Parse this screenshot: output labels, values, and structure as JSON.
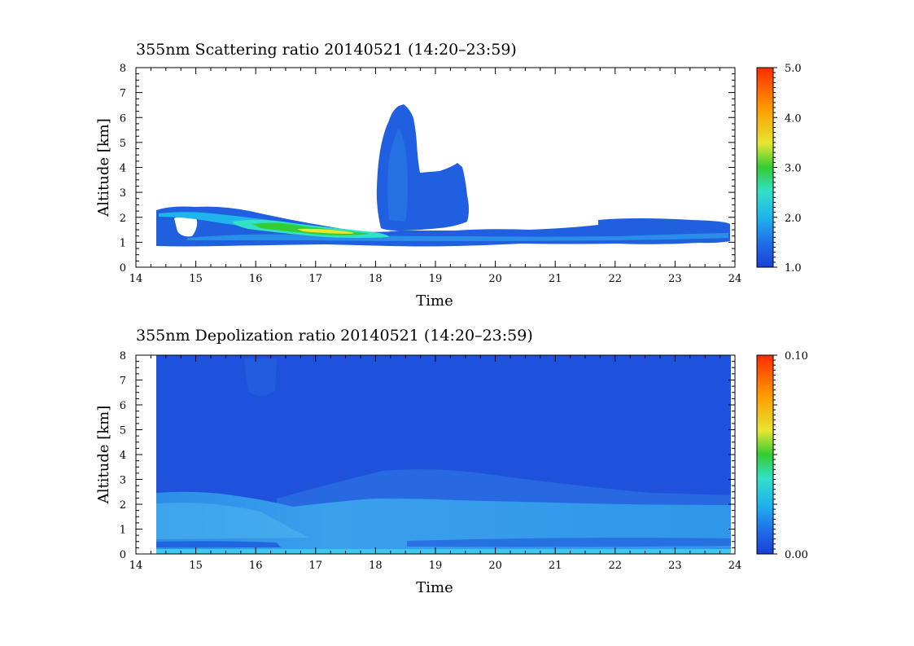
{
  "chart_data": [
    {
      "type": "heatmap",
      "title": "355nm Scattering ratio  20140521 (14:20–23:59)",
      "xlabel": "Time",
      "ylabel": "Altitude [km]",
      "xlim": [
        14,
        24
      ],
      "ylim": [
        0,
        8
      ],
      "x_ticks": [
        "14",
        "15",
        "16",
        "17",
        "18",
        "19",
        "20",
        "21",
        "22",
        "23",
        "24"
      ],
      "y_ticks": [
        "0",
        "1",
        "2",
        "3",
        "4",
        "5",
        "6",
        "7",
        "8"
      ],
      "colorbar": {
        "range": [
          1.0,
          5.0
        ],
        "ticks": [
          "1.0",
          "2.0",
          "3.0",
          "4.0",
          "5.0"
        ]
      },
      "features": [
        {
          "name": "boundary-layer",
          "time_range": [
            14.33,
            23.98
          ],
          "altitude_range": [
            0.8,
            2.3
          ],
          "value": 1.3
        },
        {
          "name": "elevated-aerosol",
          "time_range": [
            15.8,
            18.0
          ],
          "altitude_range": [
            1.2,
            1.8
          ],
          "value": 3.2
        },
        {
          "name": "convective-cloud",
          "time_range": [
            18.05,
            18.75
          ],
          "altitude_range": [
            1.5,
            6.5
          ],
          "value": 1.2
        },
        {
          "name": "cloud-shoulder",
          "time_range": [
            18.75,
            19.55
          ],
          "altitude_range": [
            1.6,
            4.2
          ],
          "value": 1.2
        }
      ]
    },
    {
      "type": "heatmap",
      "title": "355nm Depolization ratio  20140521 (14:20–23:59)",
      "xlabel": "Time",
      "ylabel": "Altitude [km]",
      "xlim": [
        14,
        24
      ],
      "ylim": [
        0,
        8
      ],
      "x_ticks": [
        "14",
        "15",
        "16",
        "17",
        "18",
        "19",
        "20",
        "21",
        "22",
        "23",
        "24"
      ],
      "y_ticks": [
        "0",
        "1",
        "2",
        "3",
        "4",
        "5",
        "6",
        "7",
        "8"
      ],
      "colorbar": {
        "range": [
          0.0,
          0.1
        ],
        "ticks": [
          "0.00",
          "0.10"
        ]
      },
      "features": [
        {
          "name": "background",
          "time_range": [
            14.33,
            23.98
          ],
          "altitude_range": [
            0,
            8
          ],
          "value": 0.012
        },
        {
          "name": "lower-layer",
          "time_range": [
            14.33,
            23.98
          ],
          "altitude_range": [
            0.3,
            2.4
          ],
          "value": 0.03
        },
        {
          "name": "surface-band",
          "time_range": [
            14.33,
            23.98
          ],
          "altitude_range": [
            0,
            0.3
          ],
          "value": 0.025
        }
      ]
    }
  ],
  "colors": {
    "map": [
      "#1a3ed6",
      "#1f6fe8",
      "#20b4ec",
      "#33e0c8",
      "#33cc33",
      "#e6e633",
      "#ff9900",
      "#ff2a00"
    ]
  }
}
